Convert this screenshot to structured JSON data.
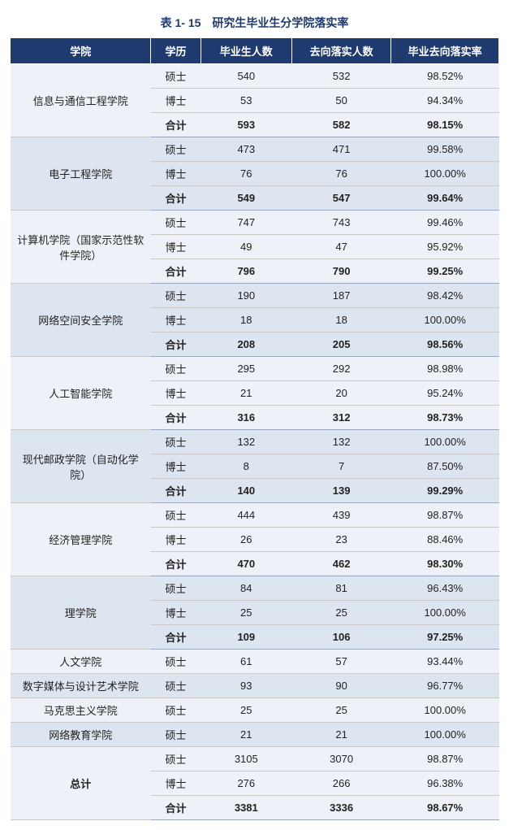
{
  "title": "表 1- 15　研究生毕业生分学院落实率",
  "columns": [
    "学院",
    "学历",
    "毕业生人数",
    "去向落实人数",
    "毕业去向落实率"
  ],
  "degree_labels": {
    "masters": "硕士",
    "phd": "博士",
    "total": "合计"
  },
  "grand_label": "总计",
  "colors": {
    "header_bg": "#1f3a6e",
    "header_fg": "#ffffff",
    "band_a": "#eef2f8",
    "band_b": "#dde5f0",
    "border": "#c9c9c9",
    "title_color": "#1f3a6e"
  },
  "colleges": [
    {
      "name": "信息与通信工程学院",
      "rows": [
        {
          "degree": "masters",
          "grads": "540",
          "placed": "532",
          "rate": "98.52%"
        },
        {
          "degree": "phd",
          "grads": "53",
          "placed": "50",
          "rate": "94.34%"
        },
        {
          "degree": "total",
          "grads": "593",
          "placed": "582",
          "rate": "98.15%"
        }
      ]
    },
    {
      "name": "电子工程学院",
      "rows": [
        {
          "degree": "masters",
          "grads": "473",
          "placed": "471",
          "rate": "99.58%"
        },
        {
          "degree": "phd",
          "grads": "76",
          "placed": "76",
          "rate": "100.00%"
        },
        {
          "degree": "total",
          "grads": "549",
          "placed": "547",
          "rate": "99.64%"
        }
      ]
    },
    {
      "name": "计算机学院（国家示范性软件学院）",
      "rows": [
        {
          "degree": "masters",
          "grads": "747",
          "placed": "743",
          "rate": "99.46%"
        },
        {
          "degree": "phd",
          "grads": "49",
          "placed": "47",
          "rate": "95.92%"
        },
        {
          "degree": "total",
          "grads": "796",
          "placed": "790",
          "rate": "99.25%"
        }
      ]
    },
    {
      "name": "网络空间安全学院",
      "rows": [
        {
          "degree": "masters",
          "grads": "190",
          "placed": "187",
          "rate": "98.42%"
        },
        {
          "degree": "phd",
          "grads": "18",
          "placed": "18",
          "rate": "100.00%"
        },
        {
          "degree": "total",
          "grads": "208",
          "placed": "205",
          "rate": "98.56%"
        }
      ]
    },
    {
      "name": "人工智能学院",
      "rows": [
        {
          "degree": "masters",
          "grads": "295",
          "placed": "292",
          "rate": "98.98%"
        },
        {
          "degree": "phd",
          "grads": "21",
          "placed": "20",
          "rate": "95.24%"
        },
        {
          "degree": "total",
          "grads": "316",
          "placed": "312",
          "rate": "98.73%"
        }
      ]
    },
    {
      "name": "现代邮政学院（自动化学院）",
      "rows": [
        {
          "degree": "masters",
          "grads": "132",
          "placed": "132",
          "rate": "100.00%"
        },
        {
          "degree": "phd",
          "grads": "8",
          "placed": "7",
          "rate": "87.50%"
        },
        {
          "degree": "total",
          "grads": "140",
          "placed": "139",
          "rate": "99.29%"
        }
      ]
    },
    {
      "name": "经济管理学院",
      "rows": [
        {
          "degree": "masters",
          "grads": "444",
          "placed": "439",
          "rate": "98.87%"
        },
        {
          "degree": "phd",
          "grads": "26",
          "placed": "23",
          "rate": "88.46%"
        },
        {
          "degree": "total",
          "grads": "470",
          "placed": "462",
          "rate": "98.30%"
        }
      ]
    },
    {
      "name": "理学院",
      "rows": [
        {
          "degree": "masters",
          "grads": "84",
          "placed": "81",
          "rate": "96.43%"
        },
        {
          "degree": "phd",
          "grads": "25",
          "placed": "25",
          "rate": "100.00%"
        },
        {
          "degree": "total",
          "grads": "109",
          "placed": "106",
          "rate": "97.25%"
        }
      ]
    },
    {
      "name": "人文学院",
      "rows": [
        {
          "degree": "masters",
          "grads": "61",
          "placed": "57",
          "rate": "93.44%"
        }
      ]
    },
    {
      "name": "数字媒体与设计艺术学院",
      "rows": [
        {
          "degree": "masters",
          "grads": "93",
          "placed": "90",
          "rate": "96.77%"
        }
      ]
    },
    {
      "name": "马克思主义学院",
      "rows": [
        {
          "degree": "masters",
          "grads": "25",
          "placed": "25",
          "rate": "100.00%"
        }
      ]
    },
    {
      "name": "网络教育学院",
      "rows": [
        {
          "degree": "masters",
          "grads": "21",
          "placed": "21",
          "rate": "100.00%"
        }
      ]
    }
  ],
  "grand_total": {
    "rows": [
      {
        "degree": "masters",
        "grads": "3105",
        "placed": "3070",
        "rate": "98.87%"
      },
      {
        "degree": "phd",
        "grads": "276",
        "placed": "266",
        "rate": "96.38%"
      },
      {
        "degree": "total",
        "grads": "3381",
        "placed": "3336",
        "rate": "98.67%"
      }
    ]
  }
}
